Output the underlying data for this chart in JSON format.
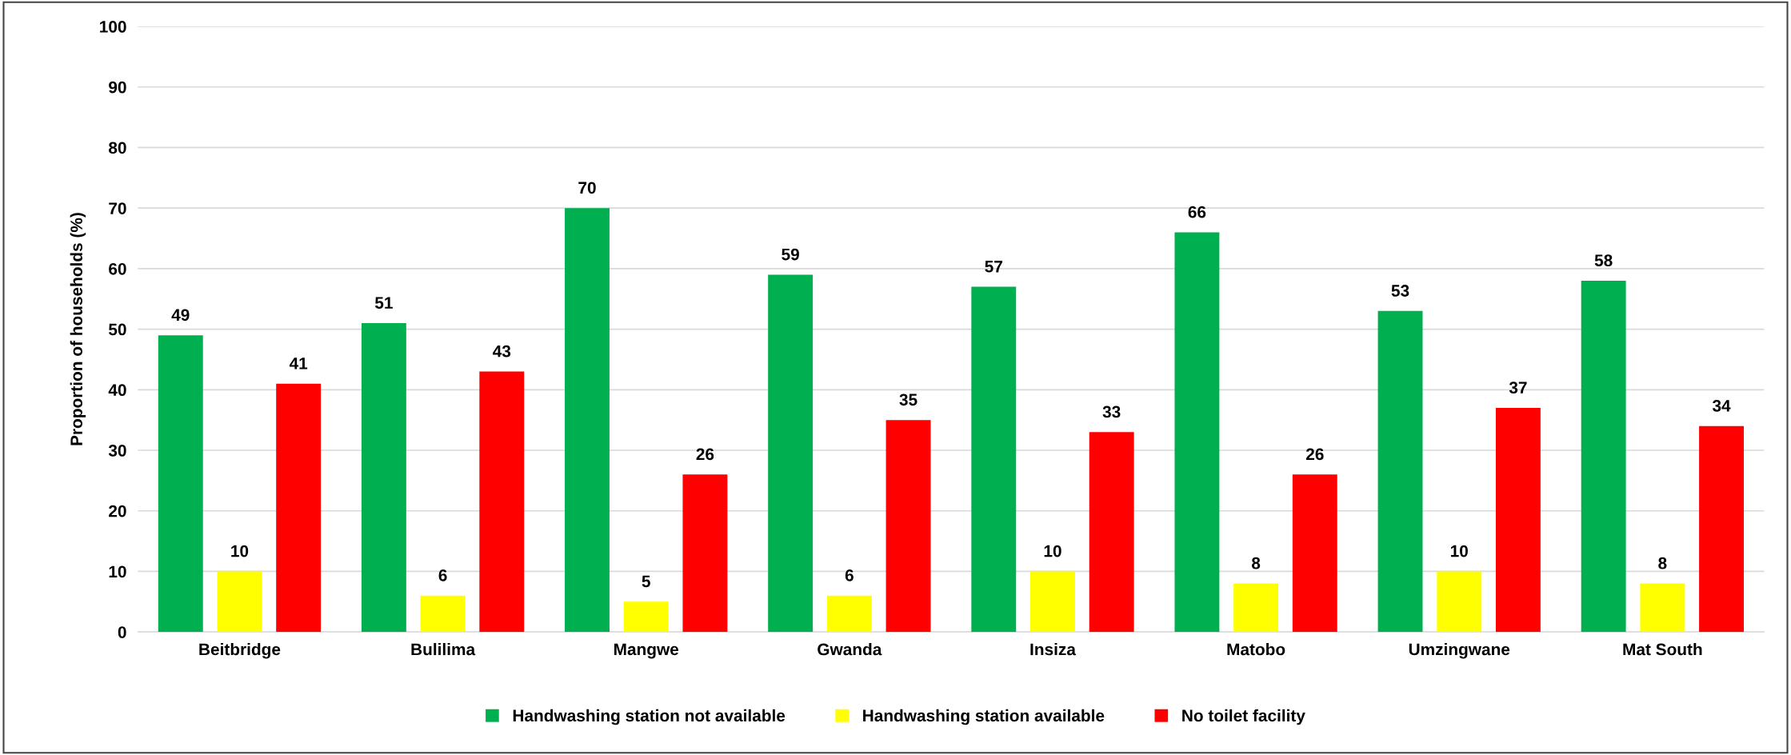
{
  "chart_data": {
    "type": "bar",
    "ylabel": "Proportion of households (%)",
    "categories": [
      "Beitbridge",
      "Bulilima",
      "Mangwe",
      "Gwanda",
      "Insiza",
      "Matobo",
      "Umzingwane",
      "Mat South"
    ],
    "series": [
      {
        "name": "Handwashing station not available",
        "color": "#00b050",
        "values": [
          49,
          51,
          70,
          59,
          57,
          66,
          53,
          58
        ]
      },
      {
        "name": "Handwashing station available",
        "color": "#ffff00",
        "values": [
          10,
          6,
          5,
          6,
          10,
          8,
          10,
          8
        ]
      },
      {
        "name": "No toilet facility",
        "color": "#ff0000",
        "values": [
          41,
          43,
          26,
          35,
          33,
          26,
          37,
          34
        ]
      }
    ],
    "ylim": [
      0,
      100
    ],
    "yticks": [
      0,
      10,
      20,
      30,
      40,
      50,
      60,
      70,
      80,
      90,
      100
    ],
    "grid": "y",
    "legend": "bottom",
    "data_labels": true
  }
}
